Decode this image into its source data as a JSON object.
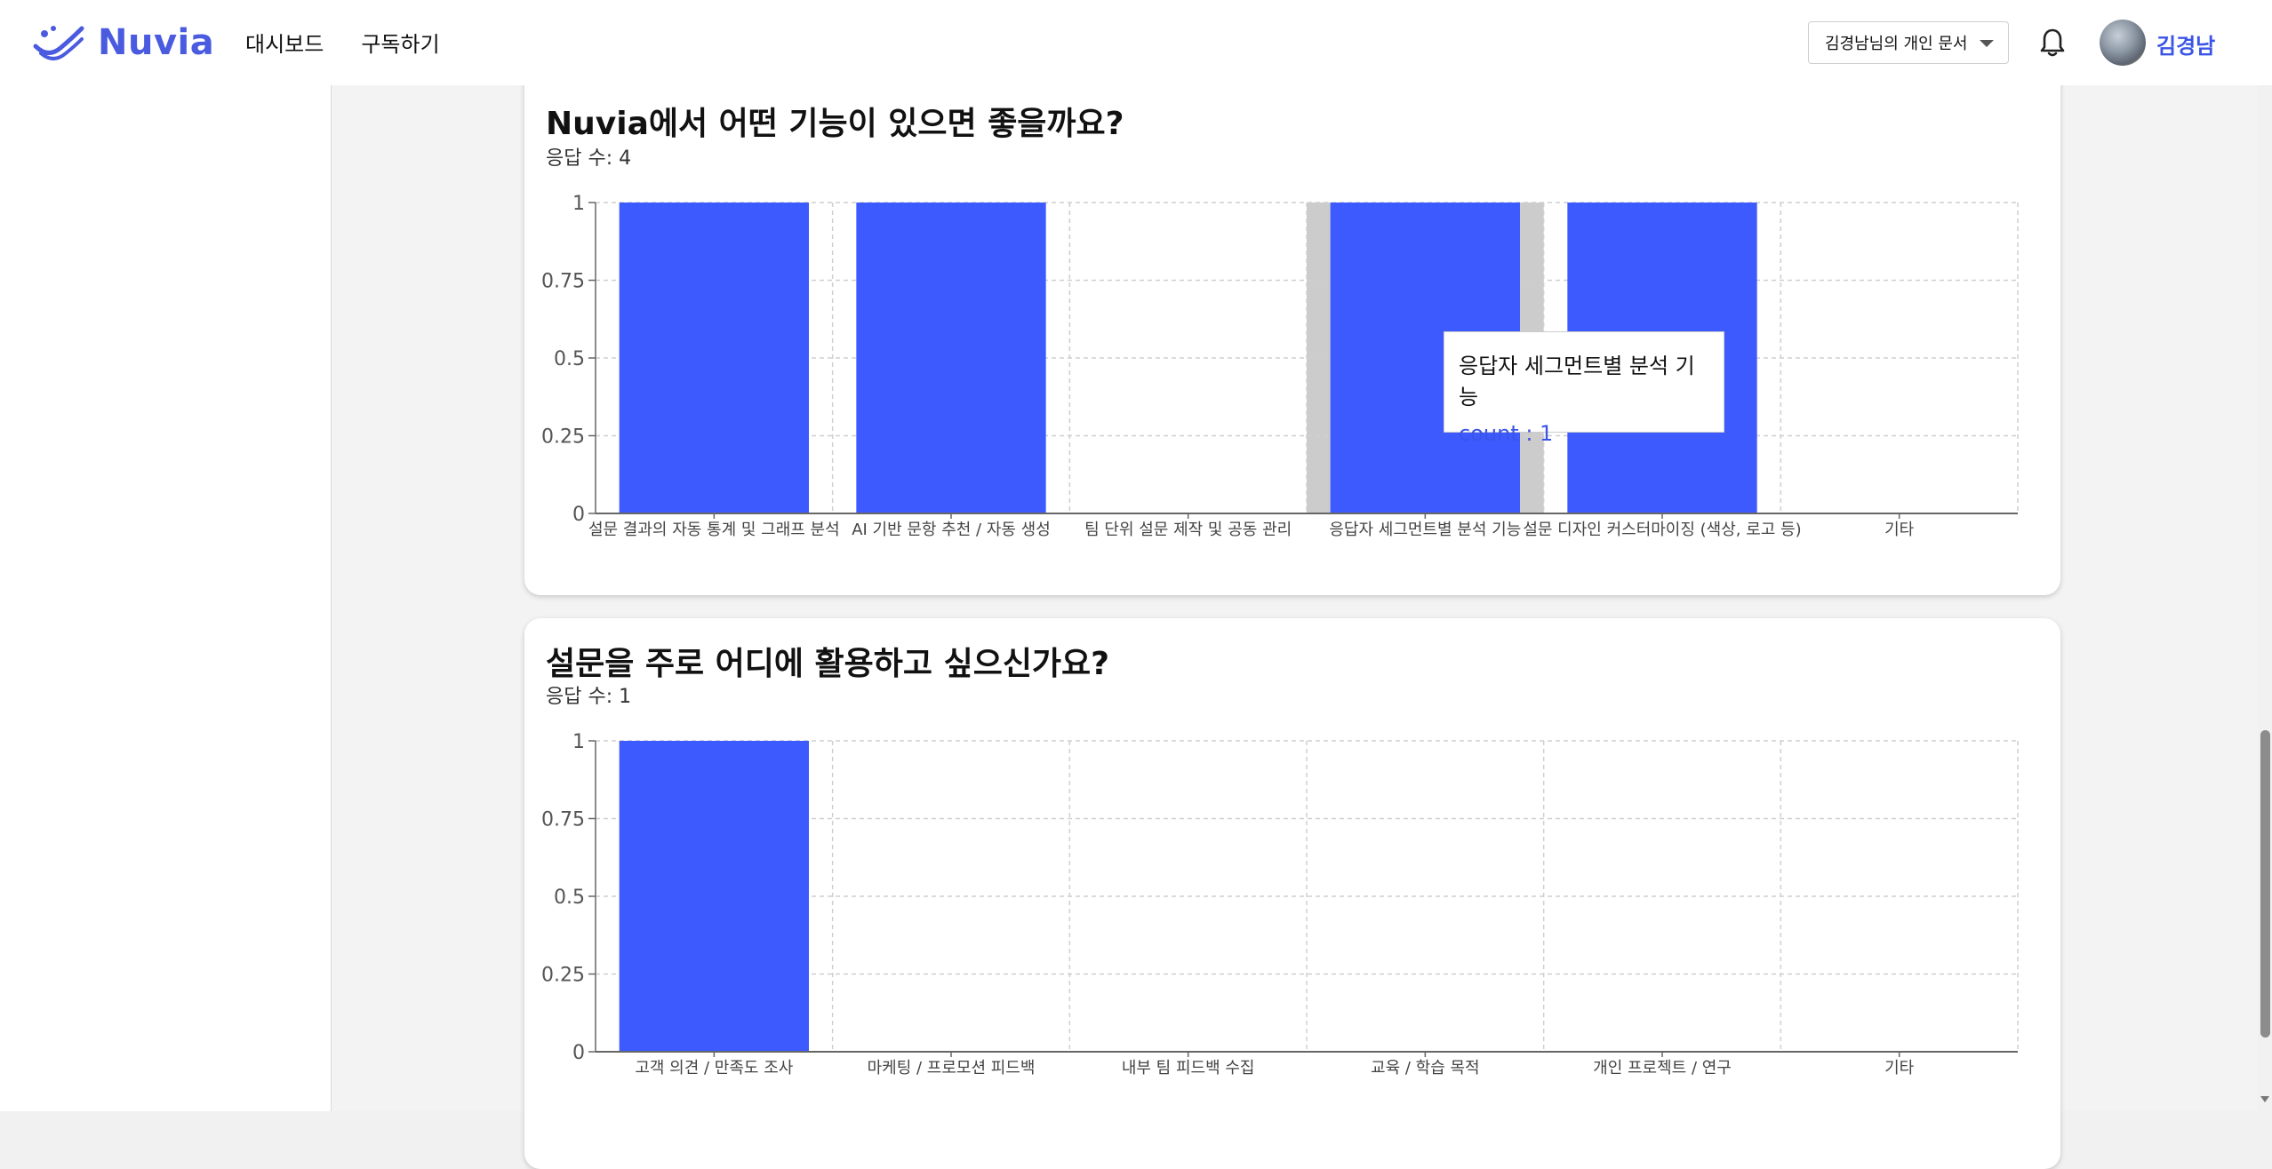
{
  "header": {
    "logo_text": "Nuvia",
    "nav": [
      "대시보드",
      "구독하기"
    ],
    "doc_select_label": "김경남님의 개인 문서",
    "user_name": "김경남"
  },
  "charts": [
    {
      "title": "Nuvia에서 어떤 기능이 있으면 좋을까요?",
      "subtitle": "응답 수: 4",
      "chart_data": {
        "type": "bar",
        "categories": [
          "설문 결과의 자동 통계 및 그래프 분석",
          "AI 기반 문항 추천 / 자동 생성",
          "팀 단위 설문 제작 및 공동 관리",
          "응답자 세그먼트별 분석 기능",
          "설문 디자인 커스터마이징 (색상, 로고 등)",
          "기타"
        ],
        "values": [
          1,
          1,
          0,
          1,
          1,
          0
        ],
        "yticks": [
          "0",
          "0.25",
          "0.5",
          "0.75",
          "1"
        ],
        "ylim": [
          0,
          1
        ],
        "grid": true,
        "hovered_index": 3,
        "bar_color": "#3d5afe"
      },
      "tooltip": {
        "label": "응답자 세그먼트별 분석 기능",
        "value": "count : 1"
      }
    },
    {
      "title": "설문을 주로 어디에 활용하고 싶으신가요?",
      "subtitle": "응답 수: 1",
      "chart_data": {
        "type": "bar",
        "categories": [
          "고객 의견 / 만족도 조사",
          "마케팅 / 프로모션 피드백",
          "내부 팀 피드백 수집",
          "교육 / 학습 목적",
          "개인 프로젝트 / 연구",
          "기타"
        ],
        "values": [
          1,
          0,
          0,
          0,
          0,
          0
        ],
        "yticks": [
          "0",
          "0.25",
          "0.5",
          "0.75",
          "1"
        ],
        "ylim": [
          0,
          1
        ],
        "grid": true,
        "bar_color": "#3d5afe"
      }
    }
  ]
}
